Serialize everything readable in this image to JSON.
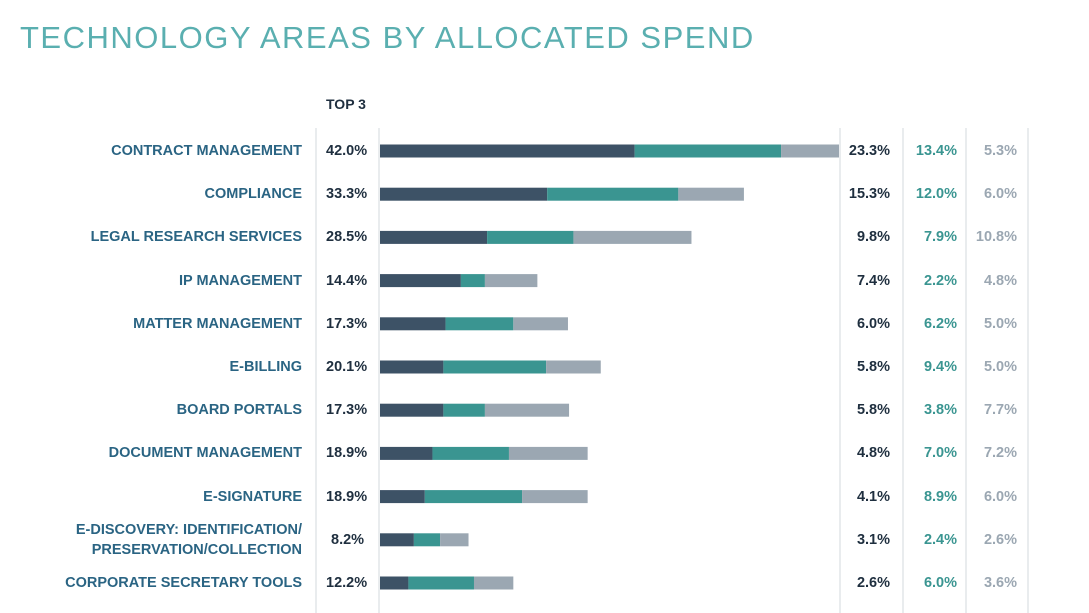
{
  "chart_data": {
    "type": "bar",
    "orientation": "horizontal",
    "stacked": true,
    "title": "TECHNOLOGY AREAS BY ALLOCATED SPEND",
    "totals_header": "TOP 3",
    "categories": [
      "CONTRACT MANAGEMENT",
      "COMPLIANCE",
      "LEGAL RESEARCH SERVICES",
      "IP MANAGEMENT",
      "MATTER MANAGEMENT",
      "E-BILLING",
      "BOARD PORTALS",
      "DOCUMENT MANAGEMENT",
      "E-SIGNATURE",
      "E-DISCOVERY: IDENTIFICATION/\nPRESERVATION/COLLECTION",
      "CORPORATE SECRETARY TOOLS"
    ],
    "totals": {
      "values": [
        42.0,
        33.3,
        28.5,
        14.4,
        17.3,
        20.1,
        17.3,
        18.9,
        18.9,
        8.2,
        12.2
      ],
      "value_labels": [
        "42.0%",
        "33.3%",
        "28.5%",
        "14.4%",
        "17.3%",
        "20.1%",
        "17.3%",
        "18.9%",
        "18.9%",
        "8.2%",
        "12.2%"
      ]
    },
    "series": [
      {
        "color": "#3d5266",
        "values": [
          23.3,
          15.3,
          9.8,
          7.4,
          6.0,
          5.8,
          5.8,
          4.8,
          4.1,
          3.1,
          2.6
        ],
        "value_labels": [
          "23.3%",
          "15.3%",
          "9.8%",
          "7.4%",
          "6.0%",
          "5.8%",
          "5.8%",
          "4.8%",
          "4.1%",
          "3.1%",
          "2.6%"
        ]
      },
      {
        "color": "#3a9591",
        "values": [
          13.4,
          12.0,
          7.9,
          2.2,
          6.2,
          9.4,
          3.8,
          7.0,
          8.9,
          2.4,
          6.0
        ],
        "value_labels": [
          "13.4%",
          "12.0%",
          "7.9%",
          "2.2%",
          "6.2%",
          "9.4%",
          "3.8%",
          "7.0%",
          "8.9%",
          "2.4%",
          "6.0%"
        ]
      },
      {
        "color": "#9ba7b2",
        "values": [
          5.3,
          6.0,
          10.8,
          4.8,
          5.0,
          5.0,
          7.7,
          7.2,
          6.0,
          2.6,
          3.6
        ],
        "value_labels": [
          "5.3%",
          "6.0%",
          "10.8%",
          "4.8%",
          "5.0%",
          "5.0%",
          "7.7%",
          "7.2%",
          "6.0%",
          "2.6%",
          "3.6%"
        ]
      }
    ]
  }
}
